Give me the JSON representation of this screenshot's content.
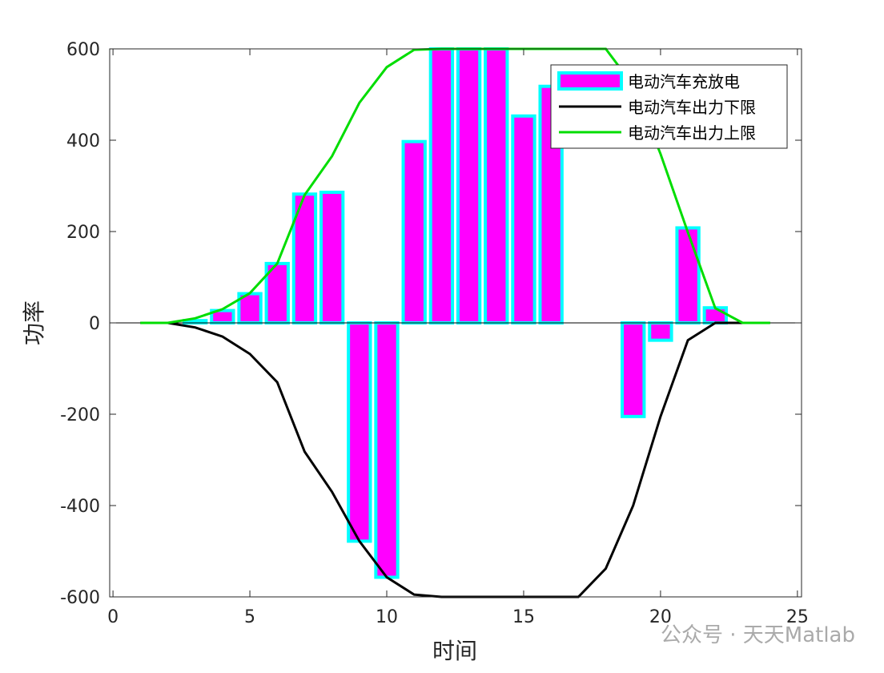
{
  "chart_data": {
    "type": "bar_line",
    "x_label": "时间",
    "y_label": "功率",
    "xlim": [
      -0.12,
      25.15
    ],
    "xticks": [
      0,
      5,
      10,
      15,
      20,
      25
    ],
    "ylim": [
      -600,
      600
    ],
    "yticks": [
      -600,
      -400,
      -200,
      0,
      200,
      400,
      600
    ],
    "x": [
      1,
      2,
      3,
      4,
      5,
      6,
      7,
      8,
      9,
      10,
      11,
      12,
      13,
      14,
      15,
      16,
      17,
      18,
      19,
      20,
      21,
      22,
      23,
      24
    ],
    "series": [
      {
        "name": "电动汽车充放电",
        "kind": "bar",
        "color": "#ff00ff",
        "edge_color": "#00ffff",
        "values": [
          0,
          0,
          5,
          27,
          64,
          130,
          282,
          286,
          -478,
          -557,
          397,
          600,
          600,
          600,
          453,
          518,
          0,
          0,
          -205,
          -38,
          208,
          33,
          0,
          0
        ]
      },
      {
        "name": "电动汽车出力下限",
        "kind": "line",
        "color": "#000000",
        "values": [
          0,
          0,
          -10,
          -30,
          -68,
          -130,
          -282,
          -370,
          -478,
          -557,
          -595,
          -600,
          -600,
          -600,
          -600,
          -600,
          -600,
          -538,
          -400,
          -205,
          -38,
          0,
          0,
          0
        ]
      },
      {
        "name": "电动汽车出力上限",
        "kind": "line",
        "color": "#00dd00",
        "values": [
          0,
          0,
          10,
          30,
          65,
          130,
          280,
          365,
          482,
          560,
          598,
          600,
          600,
          600,
          600,
          600,
          600,
          600,
          520,
          370,
          198,
          32,
          0,
          0
        ]
      }
    ],
    "legend": "upper-right",
    "watermark": "公众号 · 天天Matlab"
  }
}
